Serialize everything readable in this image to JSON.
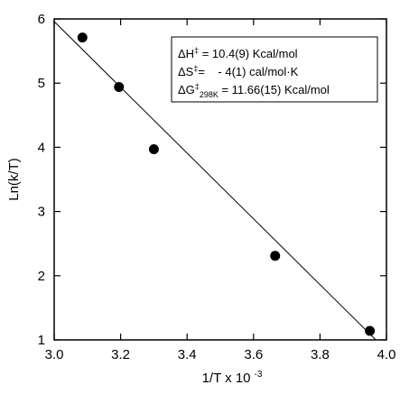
{
  "chart_data": {
    "type": "scatter",
    "xlabel": "1/T x 10",
    "xlabel_exponent": "-3",
    "ylabel": "Ln(k/T)",
    "xlim": [
      3.0,
      4.0
    ],
    "ylim": [
      1,
      6
    ],
    "xticks": [
      {
        "value": 3.0,
        "label": "3.0"
      },
      {
        "value": 3.2,
        "label": "3.2"
      },
      {
        "value": 3.4,
        "label": "3.4"
      },
      {
        "value": 3.6,
        "label": "3.6"
      },
      {
        "value": 3.8,
        "label": "3.8"
      },
      {
        "value": 4.0,
        "label": "4.0"
      }
    ],
    "yticks": [
      {
        "value": 1,
        "label": "1"
      },
      {
        "value": 2,
        "label": "2"
      },
      {
        "value": 3,
        "label": "3"
      },
      {
        "value": 4,
        "label": "4"
      },
      {
        "value": 5,
        "label": "5"
      },
      {
        "value": 6,
        "label": "6"
      }
    ],
    "points": [
      {
        "x": 3.085,
        "y": 5.71
      },
      {
        "x": 3.195,
        "y": 4.94
      },
      {
        "x": 3.3,
        "y": 3.97
      },
      {
        "x": 3.665,
        "y": 2.31
      },
      {
        "x": 3.95,
        "y": 1.14
      }
    ],
    "fit_line": {
      "x": [
        3.0,
        3.968
      ],
      "y": [
        5.96,
        1.0
      ]
    },
    "grid": false,
    "annotation": {
      "dH_label": "ΔH",
      "dH_sup": "‡",
      "dH_value": " = 10.4(9) Kcal/mol",
      "dS_label": "ΔS",
      "dS_sup": "‡",
      "dS_value": "=    - 4(1) cal/mol·K",
      "dG_label": "ΔG",
      "dG_sup": "‡",
      "dG_sub": "298K",
      "dG_value": " = 11.66(15) Kcal/mol"
    }
  }
}
